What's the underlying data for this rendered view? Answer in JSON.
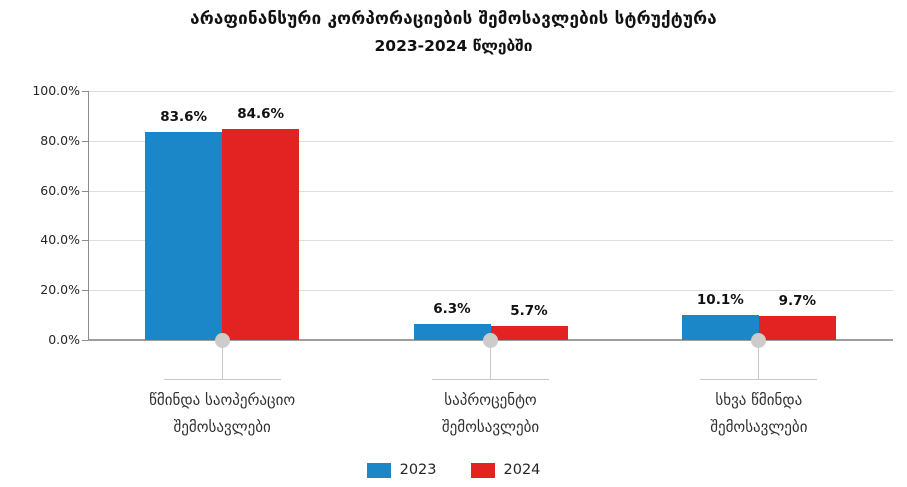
{
  "title": "არაფინანსური კორპორაციების შემოსავლების სტრუქტურა",
  "subtitle": "2023-2024 წლებში",
  "chart_data": {
    "type": "bar",
    "title": "არაფინანსური კორპორაციების შემოსავლების სტრუქტურა",
    "subtitle": "2023-2024 წლებში",
    "categories": [
      {
        "lines": [
          "წმინდა საოპერაციო",
          "შემოსავლები"
        ]
      },
      {
        "lines": [
          "საპროცენტო",
          "შემოსავლები"
        ]
      },
      {
        "lines": [
          "სხვა წმინდა",
          "შემოსავლები"
        ]
      }
    ],
    "series": [
      {
        "name": "2023",
        "color": "#1B87C8",
        "values": [
          83.6,
          6.3,
          10.1
        ],
        "labels": [
          "83.6%",
          "6.3%",
          "10.1%"
        ]
      },
      {
        "name": "2024",
        "color": "#E32322",
        "values": [
          84.6,
          5.7,
          9.7
        ],
        "labels": [
          "84.6%",
          "5.7%",
          "9.7%"
        ]
      }
    ],
    "ylim": [
      0,
      100
    ],
    "yticks": [
      0,
      20,
      40,
      60,
      80,
      100
    ],
    "ytick_labels": [
      "0.0%",
      "20.0%",
      "40.0%",
      "60.0%",
      "80.0%",
      "100.0%"
    ],
    "grid": true,
    "legend_position": "bottom"
  },
  "legend": {
    "items": [
      {
        "label": "2023",
        "color": "#1B87C8"
      },
      {
        "label": "2024",
        "color": "#E32322"
      }
    ]
  }
}
